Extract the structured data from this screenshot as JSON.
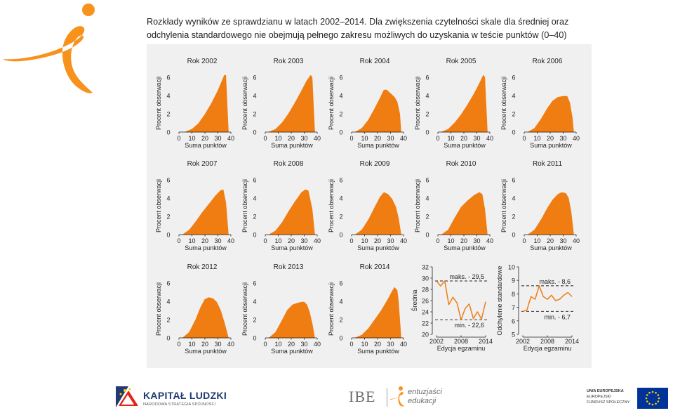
{
  "caption": {
    "line1": "Rozkłady wyników ze sprawdzianu w latach 2002–2014. Dla zwiększenia czytelności skale dla średniej oraz",
    "line2": "odchylenia standardowego nie obejmują pełnego zakresu możliwych do uzyskania w teście punktów (0–40)"
  },
  "colors": {
    "fill": "#f07d11",
    "panel_bg": "#f0f0f1",
    "axis": "#231f20",
    "kl_blue": "#203a72",
    "eu_blue": "#003399",
    "eu_yellow": "#ffcc00"
  },
  "chart_data": [
    {
      "type": "area",
      "title": "Rok 2002",
      "xlabel": "Suma punktów",
      "ylabel": "Procent obserwacji",
      "ylim": [
        0,
        6
      ],
      "xlim": [
        0,
        40
      ],
      "x": [
        5,
        10,
        15,
        20,
        25,
        30,
        33,
        35,
        36,
        38
      ],
      "y": [
        0,
        0.3,
        0.9,
        1.9,
        3.1,
        4.5,
        5.5,
        6.2,
        6.2,
        0
      ]
    },
    {
      "type": "area",
      "title": "Rok 2003",
      "xlabel": "Suma punktów",
      "ylabel": "Procent obserwacji",
      "ylim": [
        0,
        6
      ],
      "xlim": [
        0,
        40
      ],
      "x": [
        3,
        8,
        13,
        18,
        23,
        28,
        32,
        35,
        36,
        38
      ],
      "y": [
        0,
        0.3,
        1.0,
        2.0,
        3.2,
        4.5,
        5.6,
        6.2,
        6.0,
        0
      ]
    },
    {
      "type": "area",
      "title": "Rok 2004",
      "xlabel": "Suma punktów",
      "ylabel": "Procent obserwacji",
      "ylim": [
        0,
        6
      ],
      "xlim": [
        0,
        40
      ],
      "x": [
        3,
        8,
        13,
        18,
        22,
        25,
        27,
        30,
        33,
        35,
        37,
        38
      ],
      "y": [
        0,
        0.4,
        1.3,
        2.6,
        3.7,
        4.6,
        4.6,
        4.2,
        3.8,
        3.3,
        2.0,
        0
      ]
    },
    {
      "type": "area",
      "title": "Rok 2005",
      "xlabel": "Suma punktów",
      "ylabel": "Procent obserwacji",
      "ylim": [
        0,
        6
      ],
      "xlim": [
        0,
        40
      ],
      "x": [
        3,
        8,
        13,
        18,
        23,
        28,
        32,
        35,
        36,
        38
      ],
      "y": [
        0,
        0.3,
        1.0,
        1.9,
        3.0,
        4.2,
        5.3,
        6.2,
        6.0,
        0
      ]
    },
    {
      "type": "area",
      "title": "Rok 2006",
      "xlabel": "Suma punktów",
      "ylabel": "Procent obserwacji",
      "ylim": [
        0,
        6
      ],
      "xlim": [
        0,
        40
      ],
      "x": [
        3,
        8,
        13,
        18,
        22,
        26,
        30,
        33,
        35,
        37,
        38
      ],
      "y": [
        0,
        0.4,
        1.4,
        2.6,
        3.4,
        3.8,
        3.9,
        3.9,
        3.2,
        1.5,
        0
      ]
    },
    {
      "type": "area",
      "title": "Rok 2007",
      "xlabel": "Suma punktów",
      "ylabel": "Procent obserwacji",
      "ylim": [
        0,
        6
      ],
      "xlim": [
        0,
        40
      ],
      "x": [
        3,
        8,
        13,
        18,
        23,
        28,
        32,
        34,
        36,
        38
      ],
      "y": [
        0,
        0.5,
        1.4,
        2.4,
        3.3,
        4.2,
        4.8,
        4.9,
        3.5,
        0
      ]
    },
    {
      "type": "area",
      "title": "Rok 2008",
      "xlabel": "Suma punktów",
      "ylabel": "Procent obserwacji",
      "ylim": [
        0,
        6
      ],
      "xlim": [
        0,
        40
      ],
      "x": [
        3,
        8,
        13,
        18,
        23,
        28,
        31,
        33,
        36,
        38
      ],
      "y": [
        0,
        0.4,
        1.3,
        2.5,
        3.6,
        4.6,
        4.9,
        4.8,
        2.8,
        0
      ]
    },
    {
      "type": "area",
      "title": "Rok 2009",
      "xlabel": "Suma punktów",
      "ylabel": "Procent obserwacji",
      "ylim": [
        0,
        6
      ],
      "xlim": [
        0,
        40
      ],
      "x": [
        3,
        8,
        13,
        18,
        22,
        25,
        28,
        31,
        34,
        36,
        38
      ],
      "y": [
        0,
        0.5,
        1.6,
        3.0,
        4.1,
        4.6,
        4.4,
        3.9,
        3.0,
        1.8,
        0
      ]
    },
    {
      "type": "area",
      "title": "Rok 2010",
      "xlabel": "Suma punktów",
      "ylabel": "Procent obserwacji",
      "ylim": [
        0,
        6
      ],
      "xlim": [
        0,
        40
      ],
      "x": [
        3,
        8,
        13,
        18,
        23,
        28,
        32,
        34,
        36,
        38
      ],
      "y": [
        0,
        0.5,
        1.8,
        3.0,
        3.7,
        4.3,
        4.6,
        4.4,
        2.8,
        0
      ]
    },
    {
      "type": "area",
      "title": "Rok 2011",
      "xlabel": "Suma punktów",
      "ylabel": "Procent obserwacji",
      "ylim": [
        0,
        6
      ],
      "xlim": [
        0,
        40
      ],
      "x": [
        3,
        8,
        13,
        18,
        22,
        26,
        29,
        32,
        34,
        36,
        38
      ],
      "y": [
        0,
        0.5,
        1.6,
        2.9,
        3.8,
        4.4,
        4.6,
        4.5,
        4.0,
        2.5,
        0
      ]
    },
    {
      "type": "area",
      "title": "Rok 2012",
      "xlabel": "Suma punktów",
      "ylabel": "Procent obserwacji",
      "ylim": [
        0,
        6
      ],
      "xlim": [
        0,
        40
      ],
      "x": [
        3,
        8,
        13,
        17,
        20,
        23,
        26,
        29,
        32,
        35,
        38
      ],
      "y": [
        0,
        0.6,
        2.0,
        3.4,
        4.2,
        4.4,
        4.3,
        3.9,
        3.0,
        1.6,
        0
      ]
    },
    {
      "type": "area",
      "title": "Rok 2013",
      "xlabel": "Suma punktów",
      "ylabel": "Procent obserwacji",
      "ylim": [
        0,
        6
      ],
      "xlim": [
        0,
        40
      ],
      "x": [
        3,
        8,
        13,
        17,
        21,
        25,
        28,
        30,
        32,
        34,
        36,
        38
      ],
      "y": [
        0,
        0.6,
        1.9,
        3.0,
        3.6,
        3.8,
        3.9,
        3.9,
        3.6,
        2.8,
        1.6,
        0
      ]
    },
    {
      "type": "area",
      "title": "Rok 2014",
      "xlabel": "Suma punktów",
      "ylabel": "Procent obserwacji",
      "ylim": [
        0,
        6
      ],
      "xlim": [
        0,
        40
      ],
      "x": [
        3,
        8,
        13,
        18,
        23,
        28,
        31,
        33,
        35,
        36,
        38
      ],
      "y": [
        0,
        0.3,
        1.0,
        2.0,
        3.0,
        4.2,
        5.0,
        5.5,
        5.2,
        4.0,
        0
      ]
    },
    {
      "type": "line",
      "xlabel": "Edycja egzaminu",
      "ylabel": "Średnia",
      "ylim": [
        20,
        32
      ],
      "yticks": [
        20,
        22,
        24,
        26,
        28,
        30,
        32
      ],
      "xlim": [
        2002,
        2014
      ],
      "xticks": [
        2002,
        2008,
        2014
      ],
      "x": [
        2002,
        2003,
        2004,
        2005,
        2006,
        2007,
        2008,
        2009,
        2010,
        2011,
        2012,
        2013,
        2014
      ],
      "y": [
        29.5,
        28.6,
        29.5,
        25.3,
        26.6,
        25.6,
        22.6,
        24.6,
        25.4,
        22.8,
        24.0,
        22.7,
        25.8
      ],
      "reference_lines": [
        {
          "y": 29.5,
          "label": "maks. - 29,5"
        },
        {
          "y": 22.6,
          "label": "min. - 22,6"
        }
      ]
    },
    {
      "type": "line",
      "xlabel": "Edycja egzaminu",
      "ylabel": "Odchylenie standardowe",
      "ylim": [
        5,
        10
      ],
      "yticks": [
        5,
        6,
        7,
        8,
        9,
        10
      ],
      "xlim": [
        2002,
        2014
      ],
      "xticks": [
        2002,
        2008,
        2014
      ],
      "x": [
        2002,
        2003,
        2004,
        2005,
        2006,
        2007,
        2008,
        2009,
        2010,
        2011,
        2012,
        2013,
        2014
      ],
      "y": [
        6.7,
        6.8,
        7.8,
        7.6,
        8.6,
        7.8,
        7.6,
        7.9,
        7.5,
        7.6,
        7.9,
        8.1,
        7.8
      ],
      "reference_lines": [
        {
          "y": 8.6,
          "label": "maks. - 8,6"
        },
        {
          "y": 6.7,
          "label": "min. - 6,7"
        }
      ]
    }
  ],
  "footer": {
    "kl_title": "KAPITAŁ LUDZKI",
    "kl_sub": "NARODOWA STRATEGIA SPÓJNOŚCI",
    "ibe_text": "IBE",
    "ibe_tag1": "entuzjaści",
    "ibe_tag2": "edukacji",
    "eu_line1": "UNIA EUROPEJSKA",
    "eu_line2": "EUROPEJSKI",
    "eu_line3": "FUNDUSZ SPOŁECZNY"
  }
}
